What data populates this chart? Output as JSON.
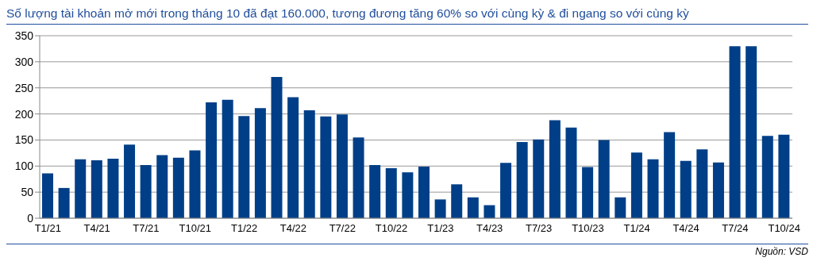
{
  "chart_data": {
    "type": "bar",
    "title": "Số lượng tài khoản mở mới trong tháng 10 đã đạt 160.000, tương đương tăng 60% so với cùng kỳ & đi ngang so với cùng kỳ",
    "categories": [
      "T1/21",
      null,
      null,
      "T4/21",
      null,
      null,
      "T7/21",
      null,
      null,
      "T10/21",
      null,
      null,
      "T1/22",
      null,
      null,
      "T4/22",
      null,
      null,
      "T7/22",
      null,
      null,
      "T10/22",
      null,
      null,
      "T1/23",
      null,
      null,
      "T4/23",
      null,
      null,
      "T7/23",
      null,
      null,
      "T10/23",
      null,
      null,
      "T1/24",
      null,
      null,
      "T4/24",
      null,
      null,
      "T7/24",
      null,
      null,
      "T10/24"
    ],
    "values": [
      86,
      58,
      113,
      111,
      114,
      141,
      102,
      121,
      116,
      130,
      222,
      227,
      196,
      211,
      271,
      232,
      207,
      195,
      199,
      155,
      102,
      96,
      88,
      99,
      36,
      65,
      40,
      25,
      106,
      146,
      151,
      188,
      174,
      98,
      150,
      40,
      126,
      113,
      165,
      110,
      132,
      107,
      330,
      330,
      158,
      160
    ],
    "color": "#003f87",
    "ylim": [
      0,
      350
    ],
    "yticks": [
      0,
      50,
      100,
      150,
      200,
      250,
      300,
      350
    ],
    "grid": "y",
    "legend": false,
    "annotations": [
      "Nguồn: VSD"
    ]
  }
}
